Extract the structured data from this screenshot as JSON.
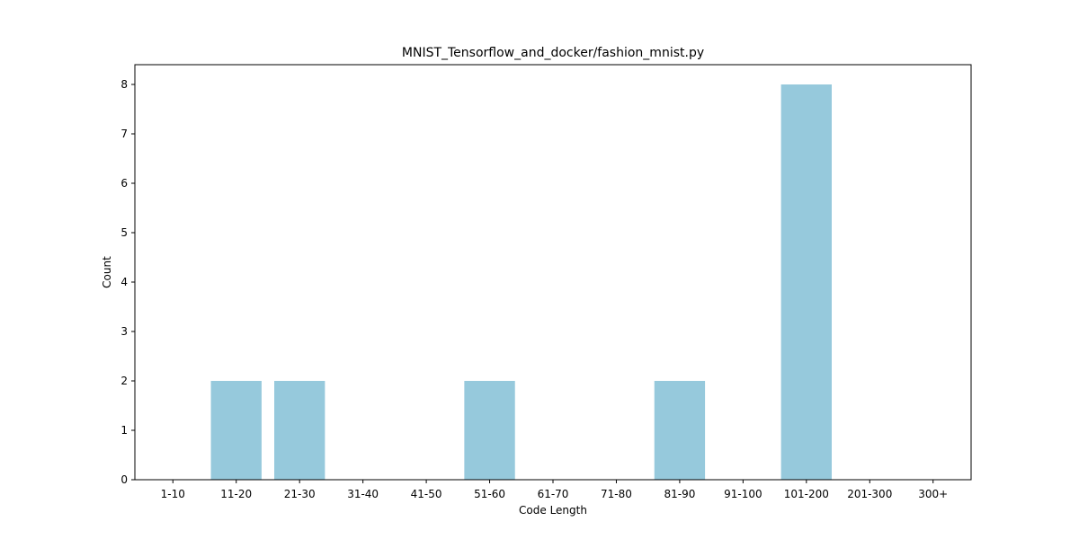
{
  "chart_data": {
    "type": "bar",
    "title": "MNIST_Tensorflow_and_docker/fashion_mnist.py",
    "xlabel": "Code Length",
    "ylabel": "Count",
    "categories": [
      "1-10",
      "11-20",
      "21-30",
      "31-40",
      "41-50",
      "51-60",
      "61-70",
      "71-80",
      "81-90",
      "91-100",
      "101-200",
      "201-300",
      "300+"
    ],
    "values": [
      0,
      2,
      2,
      0,
      0,
      2,
      0,
      0,
      2,
      0,
      8,
      0,
      0
    ],
    "ylim": [
      0,
      8.4
    ],
    "yticks": [
      0,
      1,
      2,
      3,
      4,
      5,
      6,
      7,
      8
    ],
    "bar_color": "#96c9dc",
    "grid": false,
    "legend": "none"
  }
}
